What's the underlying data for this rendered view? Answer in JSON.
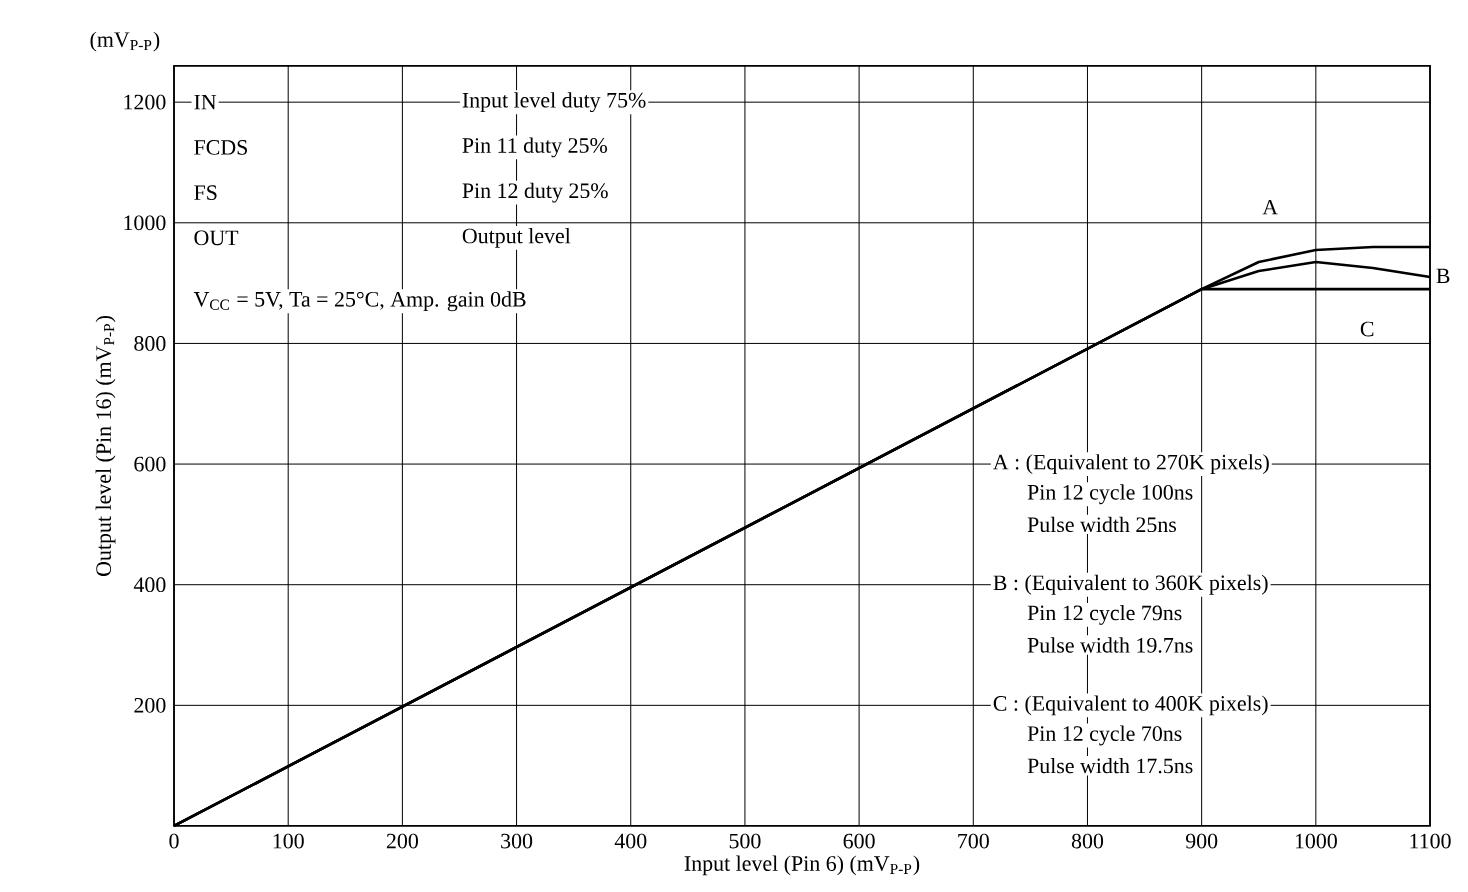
{
  "chart_data": {
    "type": "line",
    "xlabel": "Input level (Pin 6)  (mV$_{P-P}$)",
    "ylabel": "Output level  (Pin 16)  (mV$_{P-P}$)",
    "xlim": [
      0,
      1100
    ],
    "xticks": [
      0,
      100,
      200,
      300,
      400,
      500,
      600,
      700,
      800,
      900,
      1000,
      1100
    ],
    "ylim": [
      0,
      1260
    ],
    "yticks": [
      200,
      400,
      600,
      800,
      1000,
      1200
    ],
    "grid": true,
    "marker": "none",
    "line_style": "solid",
    "series": [
      {
        "name": "A",
        "color": "#000000",
        "x": [
          0,
          900,
          950,
          1000,
          1050,
          1100
        ],
        "values": [
          0,
          890,
          935,
          955,
          960,
          960
        ]
      },
      {
        "name": "B",
        "color": "#000000",
        "x": [
          0,
          900,
          950,
          1000,
          1050,
          1100
        ],
        "values": [
          0,
          890,
          920,
          935,
          925,
          910
        ]
      },
      {
        "name": "C",
        "color": "#000000",
        "x": [
          0,
          900,
          1000,
          1100
        ],
        "values": [
          0,
          890,
          890,
          890
        ]
      }
    ],
    "annotations": [
      "(mV$_{P-P}$)",
      "IN",
      "Input level duty 75%",
      "FCDS",
      "Pin 11 duty 25%",
      "FS",
      "Pin 12 duty 25%",
      "OUT",
      "Output level",
      "V$_{CC}$ = 5V,  Ta = 25°C,  Amp. gain 0dB",
      "A : (Equivalent to 270K pixels)",
      "Pin 12 cycle 100ns",
      "Pulse width 25ns",
      "B : (Equivalent to 360K pixels)",
      "Pin 12 cycle 79ns",
      "Pulse width 19.7ns",
      "C : (Equivalent to 400K pixels)",
      "Pin 12 cycle 70ns",
      "Pulse width 17.5ns"
    ]
  }
}
